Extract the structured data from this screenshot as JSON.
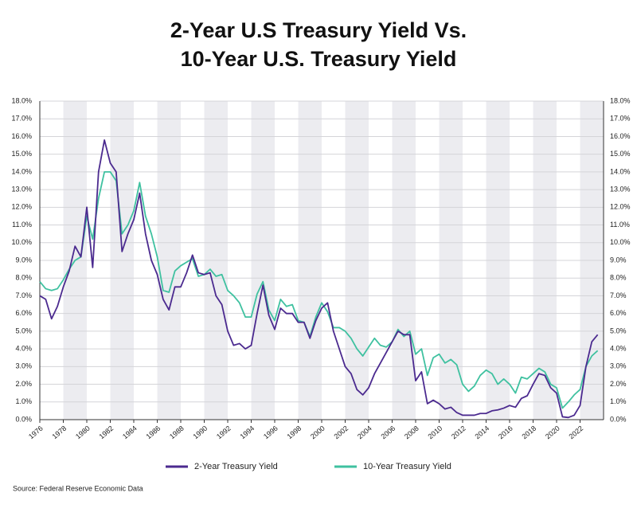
{
  "chart_data": {
    "type": "line",
    "title": [
      "2-Year U.S Treasury Yield Vs.",
      "10-Year U.S. Treasury Yield"
    ],
    "source": "Source: Federal Reserve Economic Data",
    "x": [
      1976,
      1976.5,
      1977,
      1977.5,
      1978,
      1978.5,
      1979,
      1979.5,
      1980,
      1980.5,
      1981,
      1981.5,
      1982,
      1982.5,
      1983,
      1983.5,
      1984,
      1984.5,
      1985,
      1985.5,
      1986,
      1986.5,
      1987,
      1987.5,
      1988,
      1988.5,
      1989,
      1989.5,
      1990,
      1990.5,
      1991,
      1991.5,
      1992,
      1992.5,
      1993,
      1993.5,
      1994,
      1994.5,
      1995,
      1995.5,
      1996,
      1996.5,
      1997,
      1997.5,
      1998,
      1998.5,
      1999,
      1999.5,
      2000,
      2000.5,
      2001,
      2001.5,
      2002,
      2002.5,
      2003,
      2003.5,
      2004,
      2004.5,
      2005,
      2005.5,
      2006,
      2006.5,
      2007,
      2007.5,
      2008,
      2008.5,
      2009,
      2009.5,
      2010,
      2010.5,
      2011,
      2011.5,
      2012,
      2012.5,
      2013,
      2013.5,
      2014,
      2014.5,
      2015,
      2015.5,
      2016,
      2016.5,
      2017,
      2017.5,
      2018,
      2018.5,
      2019,
      2019.5,
      2020,
      2020.5,
      2021,
      2021.5,
      2022,
      2022.5,
      2023,
      2023.5
    ],
    "series": [
      {
        "name": "2-Year Treasury Yield",
        "color": "#4b2a8f",
        "values": [
          7.0,
          6.8,
          5.7,
          6.4,
          7.5,
          8.4,
          9.8,
          9.2,
          12.0,
          8.6,
          14.0,
          15.8,
          14.5,
          14.0,
          9.5,
          10.5,
          11.3,
          12.8,
          10.5,
          9.0,
          8.2,
          6.8,
          6.2,
          7.5,
          7.5,
          8.3,
          9.3,
          8.3,
          8.2,
          8.3,
          7.0,
          6.5,
          5.0,
          4.2,
          4.3,
          4.0,
          4.2,
          6.0,
          7.6,
          5.9,
          5.1,
          6.3,
          6.0,
          6.0,
          5.5,
          5.5,
          4.6,
          5.6,
          6.3,
          6.6,
          5.0,
          4.0,
          3.0,
          2.6,
          1.7,
          1.4,
          1.8,
          2.6,
          3.2,
          3.8,
          4.4,
          5.0,
          4.8,
          4.8,
          2.2,
          2.7,
          0.9,
          1.1,
          0.9,
          0.6,
          0.7,
          0.4,
          0.25,
          0.25,
          0.25,
          0.35,
          0.35,
          0.5,
          0.55,
          0.65,
          0.8,
          0.7,
          1.2,
          1.35,
          2.0,
          2.6,
          2.5,
          1.8,
          1.5,
          0.16,
          0.12,
          0.25,
          0.8,
          3.0,
          4.4,
          4.8
        ]
      },
      {
        "name": "10-Year Treasury Yield",
        "color": "#3fc1a0",
        "values": [
          7.8,
          7.4,
          7.3,
          7.4,
          7.9,
          8.5,
          9.0,
          9.2,
          11.5,
          10.2,
          12.5,
          14.0,
          14.0,
          13.5,
          10.5,
          11.0,
          11.8,
          13.4,
          11.5,
          10.5,
          9.2,
          7.3,
          7.2,
          8.4,
          8.7,
          8.9,
          9.1,
          8.1,
          8.2,
          8.5,
          8.1,
          8.2,
          7.3,
          7.0,
          6.6,
          5.8,
          5.8,
          7.1,
          7.8,
          6.2,
          5.6,
          6.8,
          6.4,
          6.5,
          5.6,
          5.5,
          4.7,
          5.8,
          6.6,
          6.1,
          5.2,
          5.2,
          5.0,
          4.6,
          4.0,
          3.6,
          4.1,
          4.6,
          4.2,
          4.1,
          4.4,
          5.1,
          4.7,
          5.0,
          3.7,
          4.0,
          2.5,
          3.5,
          3.7,
          3.2,
          3.4,
          3.1,
          2.0,
          1.6,
          1.9,
          2.5,
          2.8,
          2.6,
          2.0,
          2.3,
          2.0,
          1.5,
          2.4,
          2.3,
          2.6,
          2.9,
          2.7,
          2.0,
          1.8,
          0.65,
          1.0,
          1.4,
          1.7,
          3.0,
          3.6,
          3.9
        ]
      }
    ],
    "xlim": [
      1976,
      2024
    ],
    "xticks": [
      1976,
      1978,
      1980,
      1982,
      1984,
      1986,
      1988,
      1990,
      1992,
      1994,
      1996,
      1998,
      2000,
      2002,
      2004,
      2006,
      2008,
      2010,
      2012,
      2014,
      2016,
      2018,
      2020,
      2022
    ],
    "ylim": [
      0,
      18
    ],
    "yticks": [
      {
        "value": 0,
        "label": "0.0%"
      },
      {
        "value": 1,
        "label": "1.0%"
      },
      {
        "value": 2,
        "label": "2.0%"
      },
      {
        "value": 3,
        "label": "3.0%"
      },
      {
        "value": 4,
        "label": "4.0%"
      },
      {
        "value": 5,
        "label": "5.0%"
      },
      {
        "value": 6,
        "label": "6.0%"
      },
      {
        "value": 7,
        "label": "7.0%"
      },
      {
        "value": 8,
        "label": "8.0%"
      },
      {
        "value": 9,
        "label": "9.0%"
      },
      {
        "value": 10,
        "label": "10.0%"
      },
      {
        "value": 11,
        "label": "11.0%"
      },
      {
        "value": 12,
        "label": "12.0%"
      },
      {
        "value": 13,
        "label": "13.0%"
      },
      {
        "value": 14,
        "label": "14.0%"
      },
      {
        "value": 15,
        "label": "15.0%"
      },
      {
        "value": 16,
        "label": "16.0%"
      },
      {
        "value": 17,
        "label": "17.0%"
      },
      {
        "value": 18,
        "label": "18.0%"
      }
    ],
    "y2lim": [
      0,
      18
    ],
    "y2ticks": [
      {
        "value": 0,
        "label": "0.0%"
      },
      {
        "value": 1,
        "label": "1.0%"
      },
      {
        "value": 2,
        "label": "2.0%"
      },
      {
        "value": 3,
        "label": "3.0%"
      },
      {
        "value": 4,
        "label": "4.0%"
      },
      {
        "value": 5,
        "label": "5.0%"
      },
      {
        "value": 6,
        "label": "6.0%"
      },
      {
        "value": 7,
        "label": "7.0%"
      },
      {
        "value": 8,
        "label": "8.0%"
      },
      {
        "value": 9,
        "label": "9.0%"
      },
      {
        "value": 10,
        "label": "10.0%"
      },
      {
        "value": 11,
        "label": "11.0%"
      },
      {
        "value": 12,
        "label": "12.0%"
      },
      {
        "value": 13,
        "label": "13.0%"
      },
      {
        "value": 14,
        "label": "14.0%"
      },
      {
        "value": 15,
        "label": "15.0%"
      },
      {
        "value": 16,
        "label": "16.0%"
      },
      {
        "value": 17,
        "label": "17.0%"
      },
      {
        "value": 18,
        "label": "18.0%"
      }
    ],
    "grid": true
  }
}
